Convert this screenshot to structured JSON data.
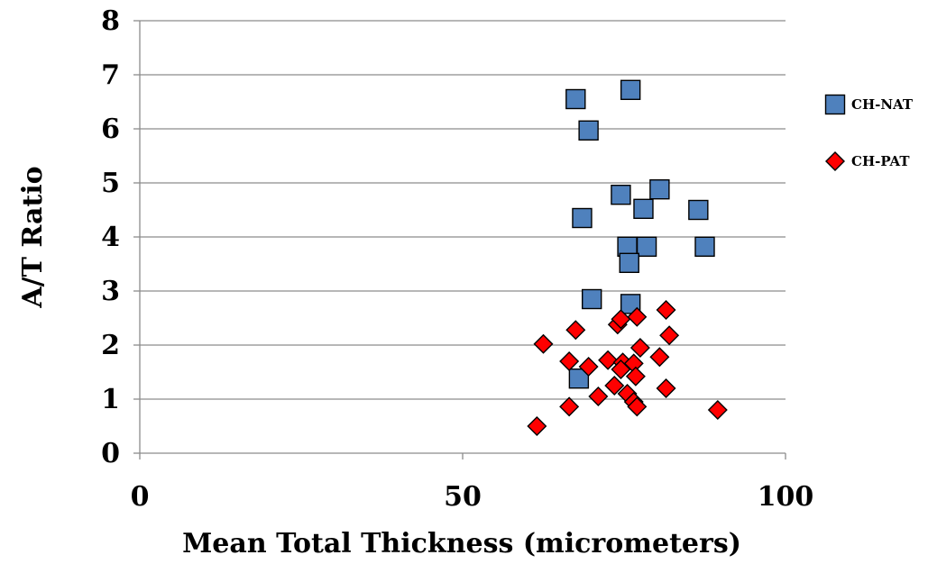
{
  "chart_data": {
    "type": "scatter",
    "title": "",
    "xlabel": "Mean Total Thickness (micrometers)",
    "ylabel": "A/T Ratio",
    "xlim": [
      0,
      100
    ],
    "ylim": [
      0,
      8
    ],
    "x_ticks": [
      "0",
      "50",
      "100"
    ],
    "y_ticks": [
      "0",
      "1",
      "2",
      "3",
      "4",
      "5",
      "6",
      "7",
      "8"
    ],
    "grid": "horizontal",
    "legend_position": "right",
    "series": [
      {
        "name": "CH-NAT",
        "marker": "square",
        "color": "#4f81bd",
        "points": [
          [
            67.5,
            6.55
          ],
          [
            76.0,
            6.72
          ],
          [
            69.5,
            5.97
          ],
          [
            74.5,
            4.78
          ],
          [
            80.5,
            4.88
          ],
          [
            68.5,
            4.35
          ],
          [
            78.0,
            4.52
          ],
          [
            86.5,
            4.5
          ],
          [
            75.5,
            3.82
          ],
          [
            78.5,
            3.82
          ],
          [
            87.5,
            3.82
          ],
          [
            75.8,
            3.52
          ],
          [
            70.0,
            2.85
          ],
          [
            76.0,
            2.76
          ],
          [
            68.0,
            1.38
          ]
        ]
      },
      {
        "name": "CH-PAT",
        "marker": "diamond",
        "color": "#ff0000",
        "points": [
          [
            62.5,
            2.02
          ],
          [
            67.5,
            2.28
          ],
          [
            74.0,
            2.38
          ],
          [
            74.5,
            2.48
          ],
          [
            77.0,
            2.52
          ],
          [
            81.5,
            2.65
          ],
          [
            82.0,
            2.18
          ],
          [
            77.5,
            1.95
          ],
          [
            80.5,
            1.78
          ],
          [
            66.5,
            1.7
          ],
          [
            72.5,
            1.72
          ],
          [
            69.5,
            1.6
          ],
          [
            74.8,
            1.68
          ],
          [
            76.5,
            1.66
          ],
          [
            74.5,
            1.55
          ],
          [
            76.8,
            1.42
          ],
          [
            73.5,
            1.25
          ],
          [
            71.0,
            1.05
          ],
          [
            75.5,
            1.1
          ],
          [
            76.5,
            0.95
          ],
          [
            77.0,
            0.86
          ],
          [
            66.5,
            0.86
          ],
          [
            81.5,
            1.2
          ],
          [
            61.5,
            0.5
          ],
          [
            89.5,
            0.8
          ]
        ]
      }
    ]
  }
}
